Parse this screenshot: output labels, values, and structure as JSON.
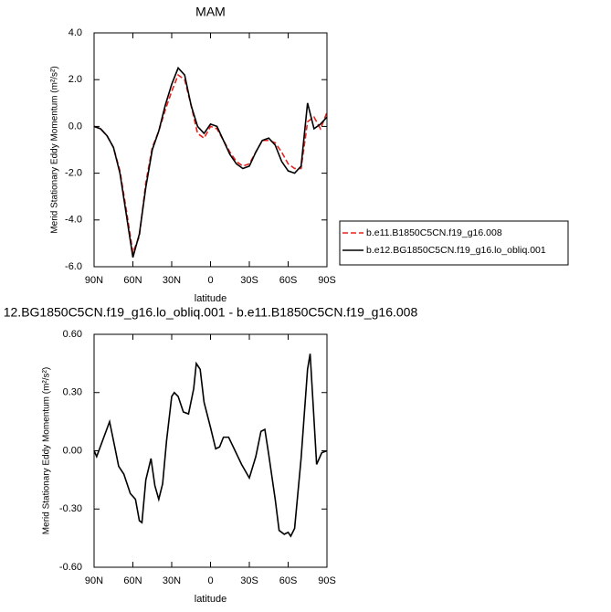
{
  "chart_data": [
    {
      "type": "line",
      "title": "MAM",
      "xlabel": "latitude",
      "ylabel": "Merid Stationary Eddy Momentum (m²/s²)",
      "x": [
        90,
        85,
        80,
        75,
        70,
        65,
        60,
        55,
        50,
        45,
        40,
        35,
        30,
        25,
        20,
        15,
        10,
        5,
        0,
        -5,
        -10,
        -15,
        -20,
        -25,
        -30,
        -35,
        -40,
        -45,
        -50,
        -55,
        -60,
        -65,
        -70,
        -75,
        -80,
        -85,
        -90
      ],
      "series": [
        {
          "name": "b.e11.B1850C5CN.f19_g16.008",
          "color": "#e8211d",
          "line_style": "dashed",
          "values": [
            0.0,
            -0.1,
            -0.4,
            -0.9,
            -1.9,
            -3.6,
            -5.4,
            -4.7,
            -2.4,
            -0.9,
            -0.2,
            0.7,
            1.5,
            2.2,
            2.0,
            0.9,
            -0.3,
            -0.5,
            0.0,
            -0.1,
            -0.6,
            -1.1,
            -1.5,
            -1.7,
            -1.6,
            -1.1,
            -0.6,
            -0.6,
            -0.7,
            -1.1,
            -1.6,
            -1.8,
            -1.8,
            0.2,
            0.4,
            -0.1,
            0.6
          ]
        },
        {
          "name": "b.e12.BG1850C5CN.f19_g16.lo_obliq.001",
          "color": "#000000",
          "line_style": "solid",
          "values": [
            0.0,
            -0.1,
            -0.4,
            -0.9,
            -2.0,
            -3.8,
            -5.6,
            -4.6,
            -2.6,
            -1.0,
            -0.2,
            0.9,
            1.8,
            2.5,
            2.2,
            0.9,
            0.0,
            -0.3,
            0.1,
            0.0,
            -0.6,
            -1.2,
            -1.6,
            -1.8,
            -1.7,
            -1.1,
            -0.6,
            -0.5,
            -0.8,
            -1.5,
            -1.9,
            -2.0,
            -1.7,
            1.0,
            -0.1,
            0.1,
            0.4
          ]
        }
      ],
      "xlim": [
        90,
        -90
      ],
      "xticks": [
        {
          "value": 90,
          "label": "90N"
        },
        {
          "value": 60,
          "label": "60N"
        },
        {
          "value": 30,
          "label": "30N"
        },
        0,
        {
          "value": -30,
          "label": "30S"
        },
        {
          "value": -60,
          "label": "60S"
        },
        {
          "value": -90,
          "label": "90S"
        }
      ],
      "ylim": [
        -6,
        4
      ],
      "yticks": [
        {
          "value": 4,
          "label": "4.0"
        },
        {
          "value": 2,
          "label": "2.0"
        },
        {
          "value": 0,
          "label": "0.0"
        },
        {
          "value": -2,
          "label": "-2.0"
        },
        {
          "value": -4,
          "label": "-4.0"
        },
        {
          "value": -6,
          "label": "-6.0"
        }
      ],
      "legend": "outside-right"
    },
    {
      "type": "line",
      "title": "12.BG1850C5CN.f19_g16.lo_obliq.001 - b.e11.B1850C5CN.f19_g16.008",
      "xlabel": "latitude",
      "ylabel": "Merid Stationary Eddy Momentum (m²/s²)",
      "x": [
        90,
        88,
        78,
        74,
        71,
        67,
        62,
        58,
        55,
        53,
        50,
        46,
        43,
        40,
        37,
        34,
        30,
        28,
        25,
        21,
        17,
        13,
        11,
        8,
        5,
        0,
        -4,
        -7,
        -10,
        -14,
        -19,
        -24,
        -30,
        -35,
        -39,
        -42,
        -45,
        -50,
        -53,
        -57,
        -60,
        -62,
        -65,
        -70,
        -75,
        -77,
        -80,
        -82,
        -86,
        -90
      ],
      "series": [
        {
          "color": "#000000",
          "line_style": "solid",
          "values": [
            0.0,
            -0.03,
            0.15,
            0.02,
            -0.08,
            -0.12,
            -0.22,
            -0.25,
            -0.36,
            -0.37,
            -0.15,
            -0.04,
            -0.18,
            -0.25,
            -0.17,
            0.05,
            0.28,
            0.3,
            0.28,
            0.2,
            0.19,
            0.32,
            0.45,
            0.42,
            0.25,
            0.12,
            0.01,
            0.02,
            0.07,
            0.07,
            0.0,
            -0.07,
            -0.14,
            -0.03,
            0.1,
            0.11,
            -0.02,
            -0.25,
            -0.41,
            -0.43,
            -0.42,
            -0.44,
            -0.4,
            -0.04,
            0.42,
            0.5,
            0.16,
            -0.07,
            -0.01,
            0.0
          ]
        }
      ],
      "xlim": [
        90,
        -90
      ],
      "xticks": [
        {
          "value": 90,
          "label": "90N"
        },
        {
          "value": 60,
          "label": "60N"
        },
        {
          "value": 30,
          "label": "30N"
        },
        0,
        {
          "value": -30,
          "label": "30S"
        },
        {
          "value": -60,
          "label": "60S"
        },
        {
          "value": -90,
          "label": "90S"
        }
      ],
      "ylim": [
        -0.6,
        0.6
      ],
      "yticks": [
        {
          "value": 0.6,
          "label": "0.60"
        },
        {
          "value": 0.3,
          "label": "0.30"
        },
        {
          "value": 0,
          "label": "0.00"
        },
        {
          "value": -0.3,
          "label": "-0.30"
        },
        {
          "value": -0.6,
          "label": "-0.60"
        }
      ]
    }
  ]
}
